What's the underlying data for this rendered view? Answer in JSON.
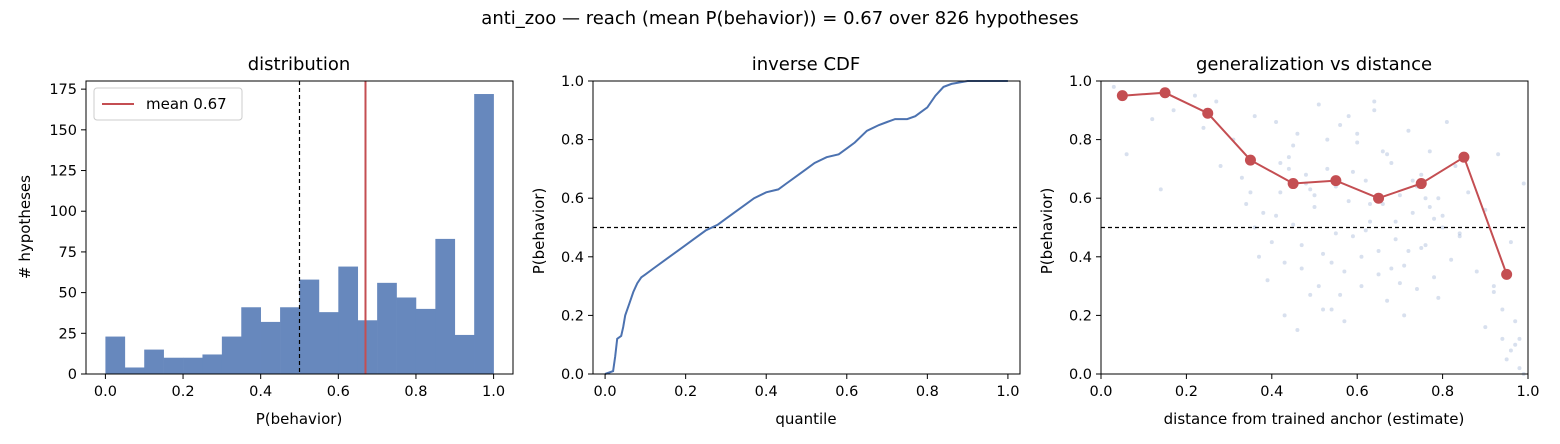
{
  "figure": {
    "title": "anti_zoo  —  reach (mean P(behavior)) = 0.67  over 826 hypotheses"
  },
  "colors": {
    "bar": "#6788bd",
    "mean_line": "#c44e52",
    "cdf_line": "#4c72b0",
    "scatter": "#4c72b0",
    "threshold": "#000000"
  },
  "chart_data": [
    {
      "type": "bar",
      "title": "distribution",
      "xlabel": "P(behavior)",
      "ylabel": "# hypotheses",
      "xlim": [
        -0.05,
        1.05
      ],
      "ylim": [
        0,
        180
      ],
      "xticks": [
        0.0,
        0.2,
        0.4,
        0.6,
        0.8,
        1.0
      ],
      "xtick_labels": [
        "0.0",
        "0.2",
        "0.4",
        "0.6",
        "0.8",
        "1.0"
      ],
      "yticks": [
        0,
        25,
        50,
        75,
        100,
        125,
        150,
        175
      ],
      "ytick_labels": [
        "0",
        "25",
        "50",
        "75",
        "100",
        "125",
        "150",
        "175"
      ],
      "bin_edges": [
        0.0,
        0.05,
        0.1,
        0.15,
        0.2,
        0.25,
        0.3,
        0.35,
        0.4,
        0.45,
        0.5,
        0.55,
        0.6,
        0.65,
        0.7,
        0.75,
        0.8,
        0.85,
        0.9,
        0.95,
        1.0
      ],
      "counts": [
        23,
        4,
        15,
        10,
        10,
        12,
        23,
        41,
        32,
        41,
        58,
        38,
        66,
        33,
        56,
        47,
        40,
        83,
        24,
        172
      ],
      "mean": 0.67,
      "threshold": 0.5,
      "legend": {
        "label": "mean 0.67",
        "loc": "upper-left"
      },
      "grid": false
    },
    {
      "type": "line",
      "title": "inverse CDF",
      "xlabel": "quantile",
      "ylabel": "P(behavior)",
      "xlim": [
        -0.03,
        1.03
      ],
      "ylim": [
        0,
        1
      ],
      "xticks": [
        0.0,
        0.2,
        0.4,
        0.6,
        0.8,
        1.0
      ],
      "xtick_labels": [
        "0.0",
        "0.2",
        "0.4",
        "0.6",
        "0.8",
        "1.0"
      ],
      "yticks": [
        0.0,
        0.2,
        0.4,
        0.6,
        0.8,
        1.0
      ],
      "ytick_labels": [
        "0.0",
        "0.2",
        "0.4",
        "0.6",
        "0.8",
        "1.0"
      ],
      "x": [
        0.0,
        0.02,
        0.025,
        0.03,
        0.04,
        0.045,
        0.05,
        0.06,
        0.07,
        0.08,
        0.09,
        0.1,
        0.12,
        0.15,
        0.18,
        0.2,
        0.22,
        0.25,
        0.28,
        0.3,
        0.32,
        0.35,
        0.37,
        0.4,
        0.43,
        0.45,
        0.48,
        0.5,
        0.52,
        0.55,
        0.58,
        0.6,
        0.62,
        0.65,
        0.68,
        0.7,
        0.72,
        0.75,
        0.77,
        0.79,
        0.8,
        0.82,
        0.84,
        0.86,
        0.9,
        0.95,
        1.0
      ],
      "y": [
        0.0,
        0.01,
        0.06,
        0.12,
        0.13,
        0.16,
        0.2,
        0.24,
        0.28,
        0.31,
        0.33,
        0.34,
        0.36,
        0.39,
        0.42,
        0.44,
        0.46,
        0.49,
        0.51,
        0.53,
        0.55,
        0.58,
        0.6,
        0.62,
        0.63,
        0.65,
        0.68,
        0.7,
        0.72,
        0.74,
        0.75,
        0.77,
        0.79,
        0.83,
        0.85,
        0.86,
        0.87,
        0.87,
        0.88,
        0.9,
        0.91,
        0.95,
        0.98,
        0.99,
        1.0,
        1.0,
        1.0
      ],
      "threshold": 0.5,
      "grid": false
    },
    {
      "type": "scatter",
      "title": "generalization vs distance",
      "xlabel": "distance from trained anchor (estimate)",
      "ylabel": "P(behavior)",
      "xlim": [
        0,
        1
      ],
      "ylim": [
        0,
        1
      ],
      "xticks": [
        0.0,
        0.2,
        0.4,
        0.6,
        0.8,
        1.0
      ],
      "xtick_labels": [
        "0.0",
        "0.2",
        "0.4",
        "0.6",
        "0.8",
        "1.0"
      ],
      "yticks": [
        0.0,
        0.2,
        0.4,
        0.6,
        0.8,
        1.0
      ],
      "ytick_labels": [
        "0.0",
        "0.2",
        "0.4",
        "0.6",
        "0.8",
        "1.0"
      ],
      "bin_means": {
        "x": [
          0.05,
          0.15,
          0.25,
          0.35,
          0.45,
          0.55,
          0.65,
          0.75,
          0.85,
          0.95
        ],
        "y": [
          0.95,
          0.96,
          0.89,
          0.73,
          0.65,
          0.66,
          0.6,
          0.65,
          0.74,
          0.34
        ]
      },
      "scatter_points": {
        "x": [
          0.03,
          0.06,
          0.12,
          0.14,
          0.17,
          0.22,
          0.24,
          0.27,
          0.28,
          0.31,
          0.33,
          0.35,
          0.36,
          0.38,
          0.4,
          0.41,
          0.42,
          0.43,
          0.44,
          0.45,
          0.46,
          0.47,
          0.48,
          0.49,
          0.5,
          0.51,
          0.52,
          0.53,
          0.54,
          0.55,
          0.56,
          0.57,
          0.58,
          0.59,
          0.6,
          0.61,
          0.62,
          0.63,
          0.64,
          0.65,
          0.66,
          0.67,
          0.68,
          0.69,
          0.7,
          0.71,
          0.72,
          0.73,
          0.74,
          0.75,
          0.76,
          0.77,
          0.78,
          0.79,
          0.8,
          0.81,
          0.82,
          0.83,
          0.84,
          0.86,
          0.88,
          0.9,
          0.92,
          0.93,
          0.94,
          0.95,
          0.96,
          0.97,
          0.98,
          0.99,
          0.37,
          0.39,
          0.41,
          0.43,
          0.45,
          0.47,
          0.49,
          0.51,
          0.53,
          0.55,
          0.57,
          0.59,
          0.61,
          0.63,
          0.65,
          0.67,
          0.69,
          0.71,
          0.73,
          0.75,
          0.77,
          0.79,
          0.42,
          0.46,
          0.5,
          0.54,
          0.58,
          0.62,
          0.66,
          0.7,
          0.74,
          0.78,
          0.34,
          0.44,
          0.52,
          0.6,
          0.68,
          0.76,
          0.84,
          0.92,
          0.96,
          0.98,
          0.36,
          0.48,
          0.56,
          0.64,
          0.72,
          0.8,
          0.9,
          0.94,
          0.97,
          0.99
        ],
        "y": [
          0.98,
          0.75,
          0.87,
          0.63,
          0.9,
          0.95,
          0.84,
          0.93,
          0.71,
          0.8,
          0.67,
          0.62,
          0.88,
          0.55,
          0.45,
          0.86,
          0.62,
          0.38,
          0.74,
          0.51,
          0.82,
          0.36,
          0.68,
          0.27,
          0.57,
          0.92,
          0.41,
          0.7,
          0.22,
          0.64,
          0.85,
          0.35,
          0.59,
          0.47,
          0.79,
          0.3,
          0.66,
          0.52,
          0.9,
          0.42,
          0.58,
          0.25,
          0.72,
          0.46,
          0.61,
          0.37,
          0.83,
          0.55,
          0.29,
          0.68,
          0.44,
          0.76,
          0.33,
          0.6,
          0.5,
          0.86,
          0.39,
          0.71,
          0.48,
          0.62,
          0.35,
          0.56,
          0.28,
          0.75,
          0.12,
          0.05,
          0.45,
          0.18,
          0.12,
          0.65,
          0.4,
          0.32,
          0.54,
          0.2,
          0.78,
          0.44,
          0.63,
          0.3,
          0.8,
          0.48,
          0.18,
          0.69,
          0.4,
          0.58,
          0.34,
          0.75,
          0.52,
          0.2,
          0.66,
          0.43,
          0.57,
          0.26,
          0.72,
          0.15,
          0.61,
          0.38,
          0.88,
          0.49,
          0.76,
          0.31,
          0.64,
          0.53,
          0.58,
          0.7,
          0.22,
          0.82,
          0.36,
          0.6,
          0.47,
          0.3,
          0.08,
          0.02,
          0.5,
          0.65,
          0.27,
          0.93,
          0.42,
          0.54,
          0.16,
          0.22,
          0.1,
          0.0
        ]
      },
      "threshold": 0.5,
      "grid": false
    }
  ]
}
